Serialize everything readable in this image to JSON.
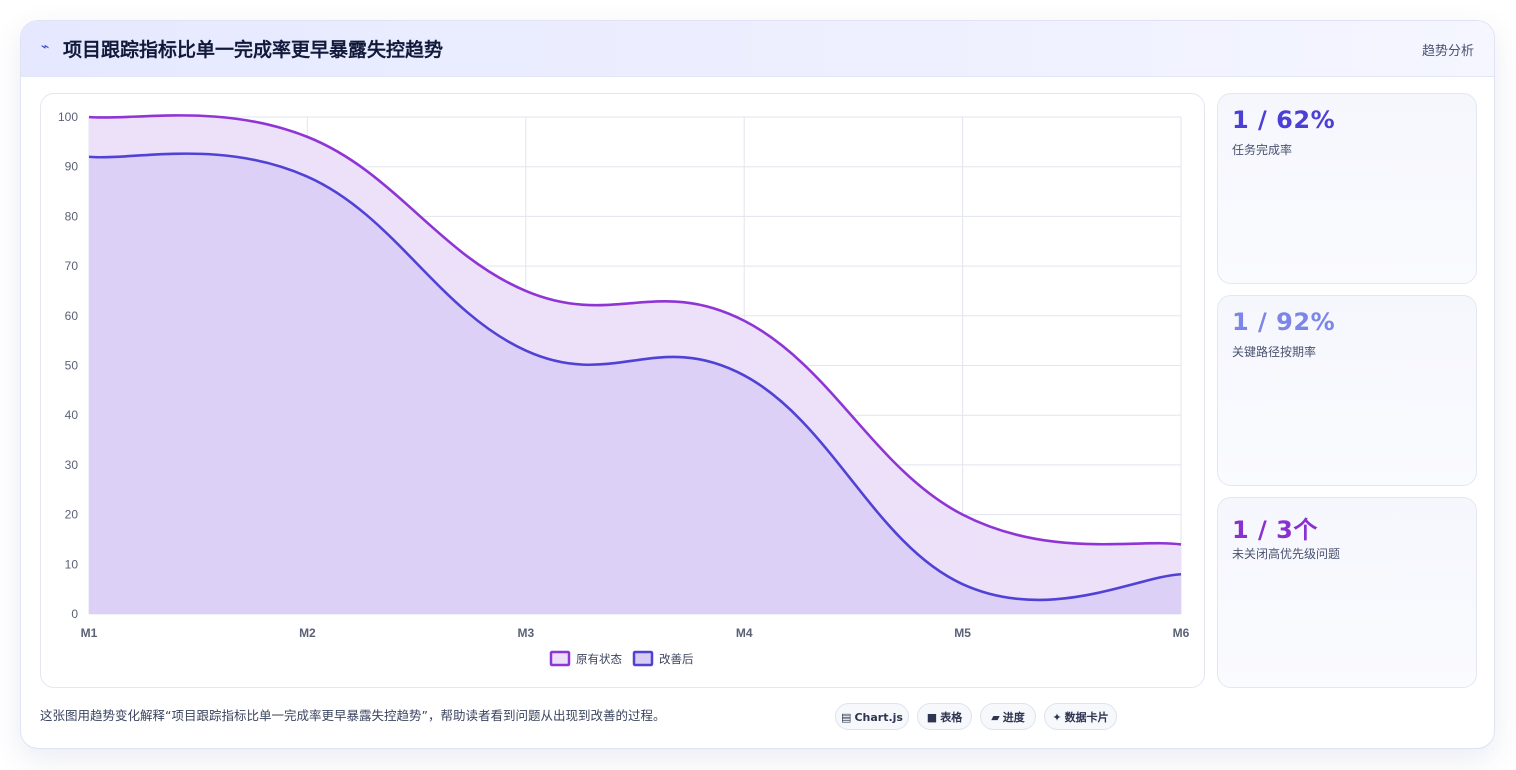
{
  "header": {
    "icon": "trend-line-icon",
    "icon_glyph": "⌁",
    "title": "项目跟踪指标比单一完成率更早暴露失控趋势",
    "tag": "趋势分析"
  },
  "kpis": [
    {
      "value": "1 / 62%",
      "label": "任务完成率",
      "color": "#4b3fd6"
    },
    {
      "value": "1 / 92%",
      "label": "关键路径按期率",
      "color": "#7b86e8"
    },
    {
      "value": "1 / 3个",
      "label": "未关闭高优先级问题",
      "color": "#8a2fd0"
    }
  ],
  "footer": {
    "text": "这张图用趋势变化解释“项目跟踪指标比单一完成率更早暴露失控趋势”，帮助读者看到问题从出现到改善的过程。"
  },
  "chips": [
    {
      "icon": "chart-icon",
      "glyph": "▤",
      "label": "Chart.js"
    },
    {
      "icon": "table-icon",
      "glyph": "■",
      "label": "表格"
    },
    {
      "icon": "progress-icon",
      "glyph": "▰",
      "label": "进度"
    },
    {
      "icon": "sparkle-icon",
      "glyph": "✦",
      "label": "数据卡片"
    }
  ],
  "chart_data": {
    "type": "area",
    "categories": [
      "M1",
      "M2",
      "M3",
      "M4",
      "M5",
      "M6"
    ],
    "ylim": [
      0,
      100
    ],
    "yticks": [
      0,
      10,
      20,
      30,
      40,
      50,
      60,
      70,
      80,
      90,
      100
    ],
    "grid": true,
    "legend": "bottom-center",
    "series": [
      {
        "name": "原有状态",
        "values": [
          100,
          96,
          65,
          59,
          20,
          14
        ],
        "color": "#8f35d6",
        "fill": "#ecdffa"
      },
      {
        "name": "改善后",
        "values": [
          92,
          88,
          53,
          48,
          6,
          8
        ],
        "color": "#5142d6",
        "fill": "#d9cdf6"
      }
    ]
  }
}
